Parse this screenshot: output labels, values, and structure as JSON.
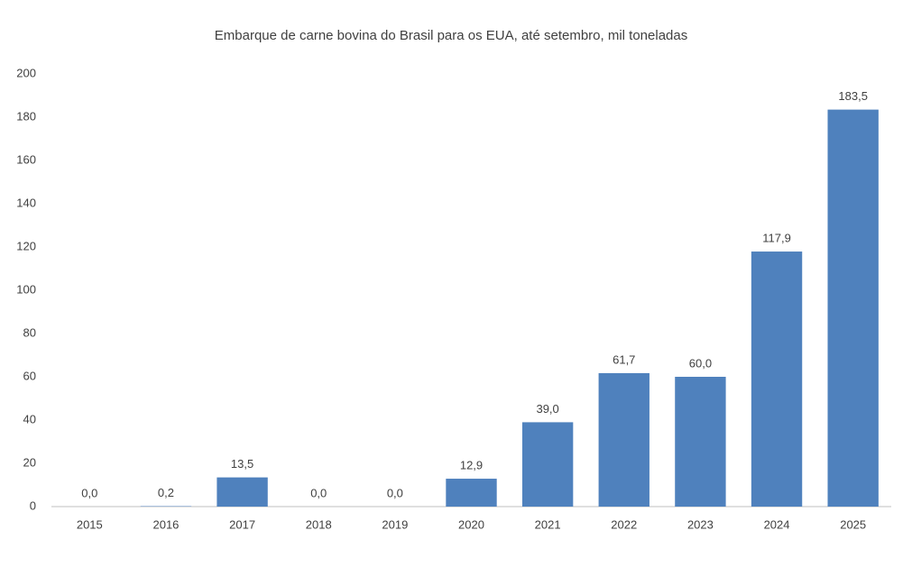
{
  "chart_data": {
    "type": "bar",
    "title": "Embarque de carne bovina do Brasil para os EUA, até setembro, mil toneladas",
    "categories": [
      "2015",
      "2016",
      "2017",
      "2018",
      "2019",
      "2020",
      "2021",
      "2022",
      "2023",
      "2024",
      "2025"
    ],
    "values": [
      0,
      0.2,
      13.5,
      0,
      0,
      12.9,
      39,
      61.7,
      60,
      117.9,
      183.5
    ],
    "value_labels": [
      "0,0",
      "0,2",
      "13,5",
      "0,0",
      "0,0",
      "12,9",
      "39,0",
      "61,7",
      "60,0",
      "117,9",
      "183,5"
    ],
    "color": "#4f81bd",
    "ylim": [
      0,
      200
    ],
    "yticks": [
      0,
      20,
      40,
      60,
      80,
      100,
      120,
      140,
      160,
      180,
      200
    ],
    "grid": false
  }
}
